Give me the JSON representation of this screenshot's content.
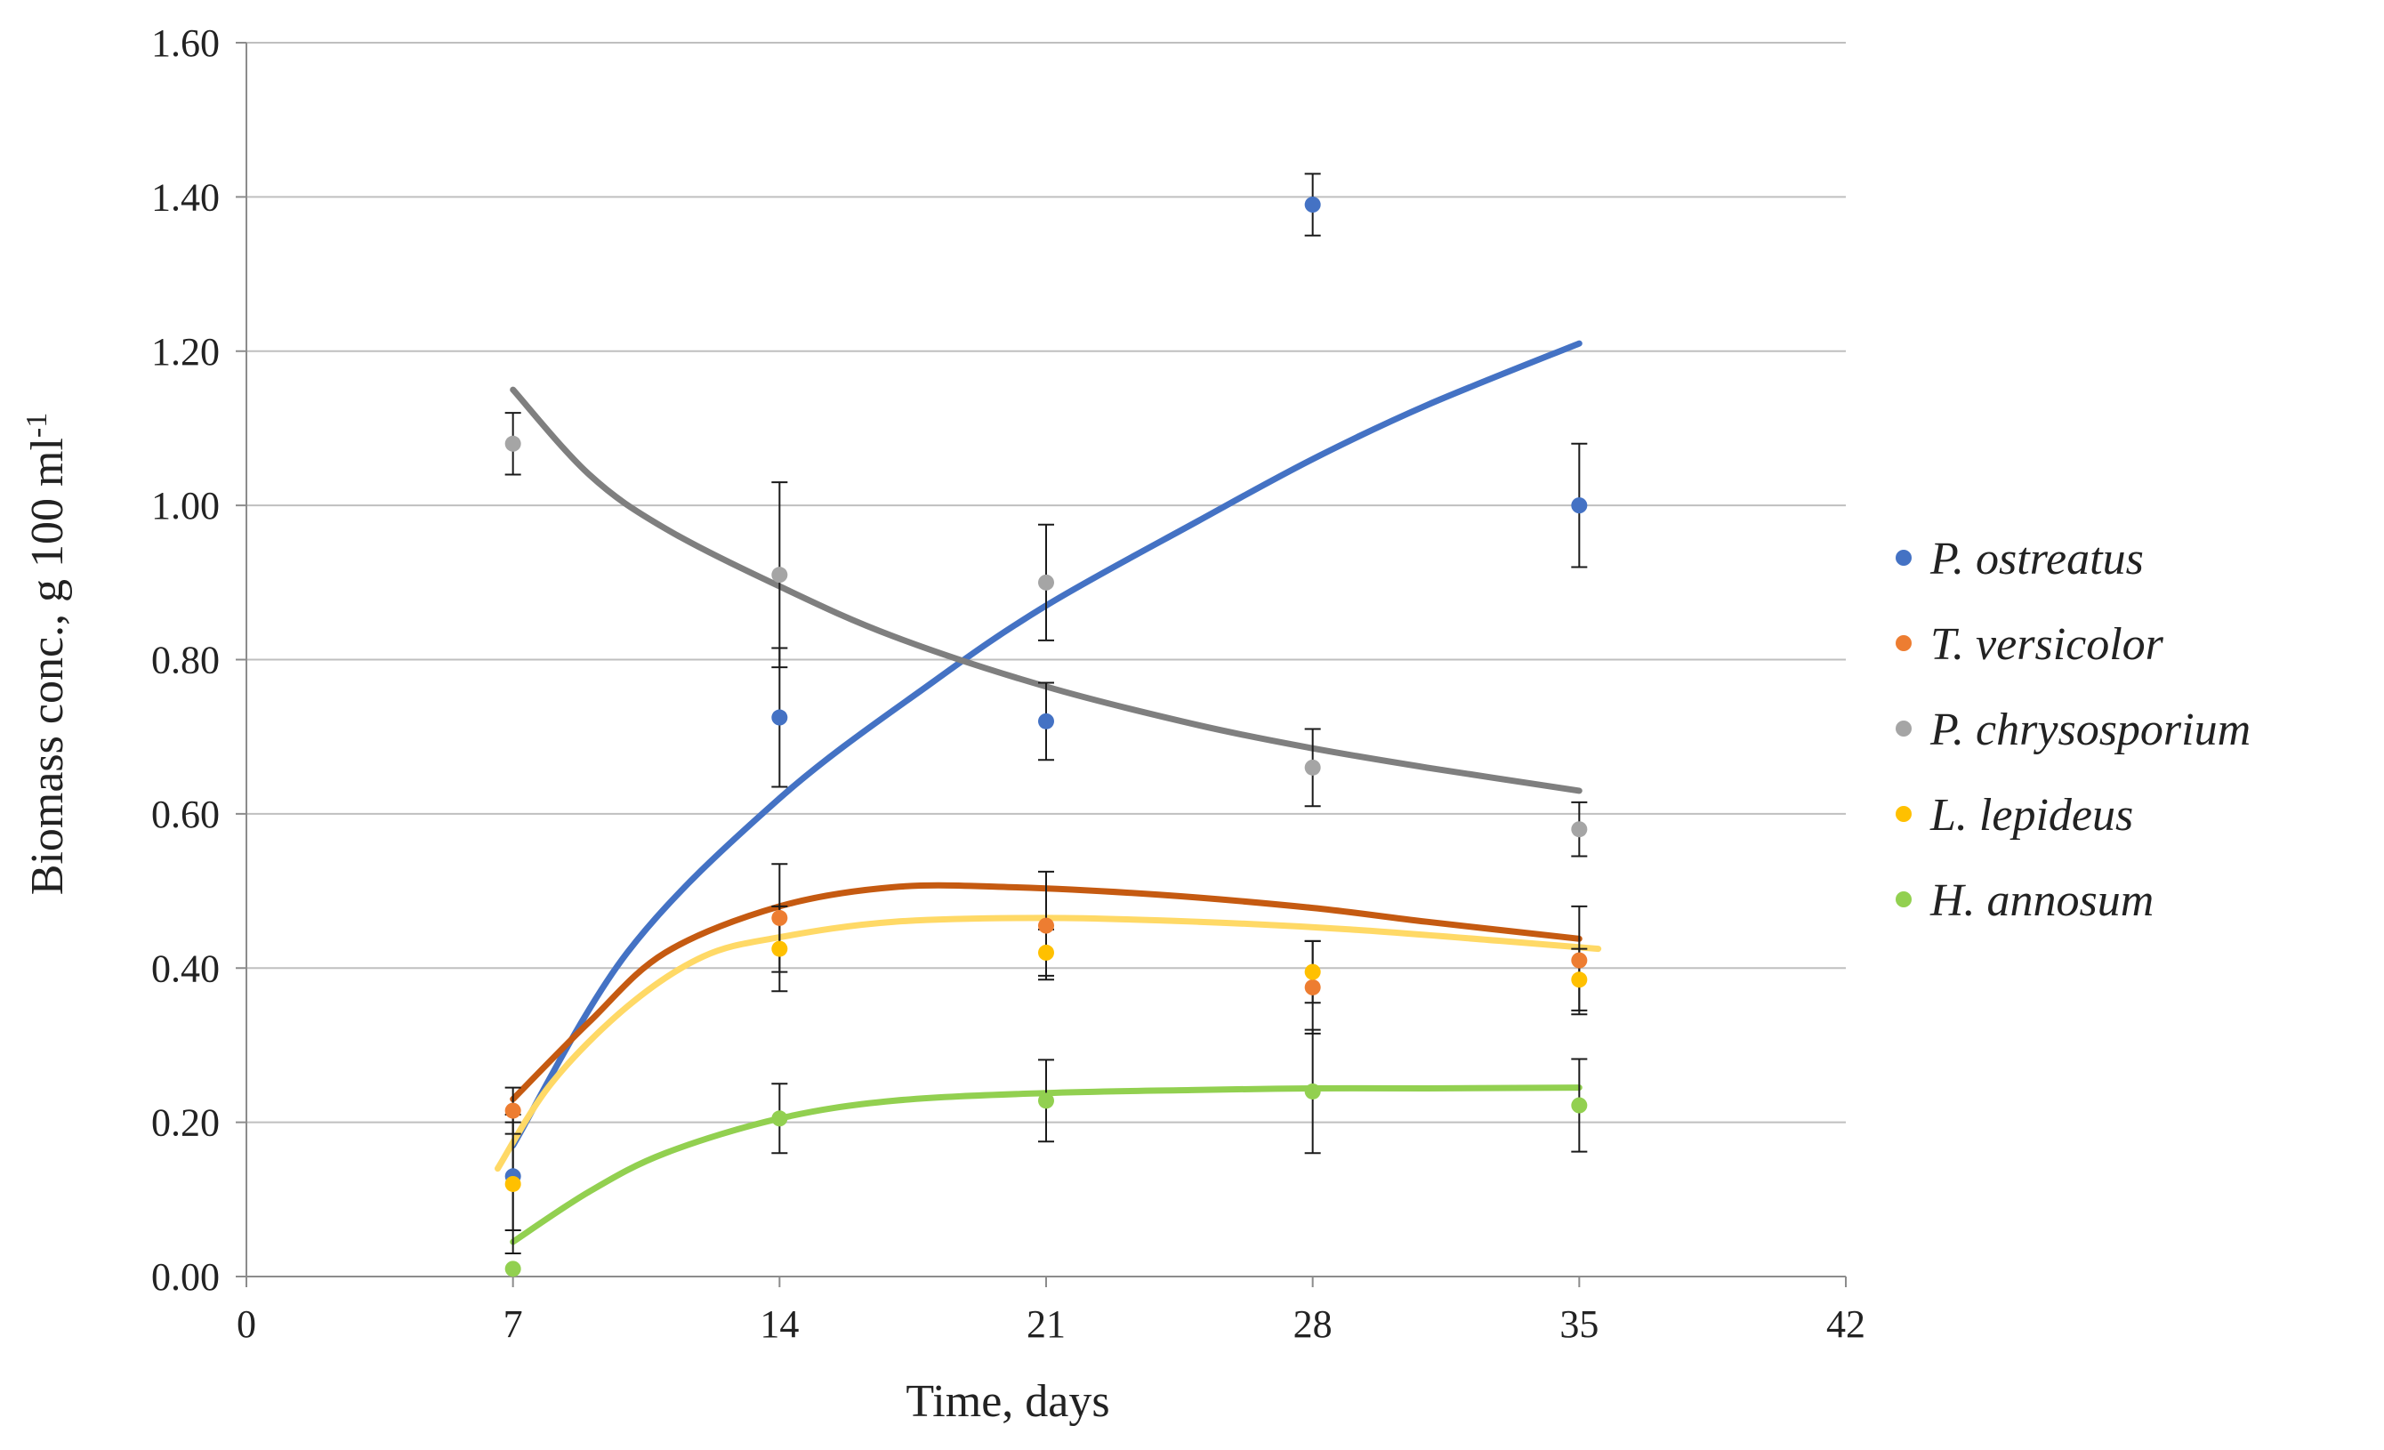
{
  "chart_data": {
    "type": "scatter",
    "title": "",
    "xlabel": "Time, days",
    "ylabel_main": "Biomass conc.,  g 100 ml",
    "ylabel_sup": "-1",
    "xlim": [
      0,
      42
    ],
    "ylim": [
      0,
      1.6
    ],
    "x_ticks": [
      0,
      7,
      14,
      21,
      28,
      35,
      42
    ],
    "y_ticks": [
      0,
      0.2,
      0.4,
      0.6,
      0.8,
      1.0,
      1.2,
      1.4,
      1.6
    ],
    "x_tick_labels": [
      "0",
      "7",
      "14",
      "21",
      "28",
      "35",
      "42"
    ],
    "y_tick_labels": [
      "0.00",
      "0.20",
      "0.40",
      "0.60",
      "0.80",
      "1.00",
      "1.20",
      "1.40",
      "1.60"
    ],
    "grid": "horizontal",
    "legend_position": "right",
    "series": [
      {
        "name": "P. ostreatus",
        "color": "#4472C4",
        "trend_color": "#4472C4",
        "x": [
          7,
          14,
          21,
          28,
          35
        ],
        "values": [
          0.13,
          0.725,
          0.72,
          1.39,
          1.0
        ],
        "errors": [
          0.07,
          0.09,
          0.05,
          0.04,
          0.08
        ],
        "trend": [
          [
            7,
            0.17
          ],
          [
            10,
            0.42
          ],
          [
            14,
            0.62
          ],
          [
            18,
            0.77
          ],
          [
            21,
            0.87
          ],
          [
            25,
            0.98
          ],
          [
            28,
            1.06
          ],
          [
            31,
            1.13
          ],
          [
            35,
            1.21
          ]
        ]
      },
      {
        "name": "T. versicolor",
        "color": "#ED7D31",
        "trend_color": "#C55A11",
        "x": [
          7,
          14,
          21,
          28,
          35
        ],
        "values": [
          0.215,
          0.465,
          0.455,
          0.375,
          0.41
        ],
        "errors": [
          0.03,
          0.07,
          0.07,
          0.06,
          0.07
        ],
        "trend": [
          [
            7,
            0.23
          ],
          [
            9,
            0.33
          ],
          [
            11,
            0.42
          ],
          [
            14,
            0.48
          ],
          [
            17,
            0.505
          ],
          [
            20,
            0.505
          ],
          [
            24,
            0.495
          ],
          [
            28,
            0.478
          ],
          [
            31,
            0.46
          ],
          [
            35,
            0.438
          ]
        ]
      },
      {
        "name": "P. chrysosporium",
        "color": "#A5A5A5",
        "trend_color": "#7F7F7F",
        "x": [
          7,
          14,
          21,
          28,
          35
        ],
        "values": [
          1.08,
          0.91,
          0.9,
          0.66,
          0.58
        ],
        "errors": [
          0.04,
          0.12,
          0.075,
          0.05,
          0.035
        ],
        "trend": [
          [
            7,
            1.15
          ],
          [
            9,
            1.04
          ],
          [
            11,
            0.97
          ],
          [
            14,
            0.895
          ],
          [
            17,
            0.83
          ],
          [
            21,
            0.765
          ],
          [
            25,
            0.715
          ],
          [
            28,
            0.685
          ],
          [
            31,
            0.66
          ],
          [
            35,
            0.63
          ]
        ]
      },
      {
        "name": "L. lepideus",
        "color": "#FFC000",
        "trend_color": "#FFD966",
        "x": [
          7,
          14,
          21,
          28,
          35
        ],
        "values": [
          0.12,
          0.425,
          0.42,
          0.395,
          0.385
        ],
        "errors": [
          0.09,
          0.055,
          0.03,
          0.04,
          0.04
        ],
        "trend": [
          [
            6.6,
            0.14
          ],
          [
            8,
            0.25
          ],
          [
            10,
            0.35
          ],
          [
            12,
            0.415
          ],
          [
            14,
            0.44
          ],
          [
            17,
            0.46
          ],
          [
            21,
            0.465
          ],
          [
            25,
            0.46
          ],
          [
            29,
            0.45
          ],
          [
            33,
            0.435
          ],
          [
            35.5,
            0.425
          ]
        ]
      },
      {
        "name": "H. annosum",
        "color": "#92D050",
        "trend_color": "#92D050",
        "x": [
          7,
          14,
          21,
          28,
          35
        ],
        "values": [
          0.01,
          0.205,
          0.228,
          0.24,
          0.222
        ],
        "errors": [
          0.0,
          0.045,
          0.053,
          0.08,
          0.06
        ],
        "trend": [
          [
            7,
            0.045
          ],
          [
            9,
            0.11
          ],
          [
            11,
            0.16
          ],
          [
            14,
            0.205
          ],
          [
            17,
            0.228
          ],
          [
            21,
            0.238
          ],
          [
            25,
            0.242
          ],
          [
            28,
            0.244
          ],
          [
            31,
            0.244
          ],
          [
            35,
            0.245
          ]
        ]
      }
    ]
  }
}
